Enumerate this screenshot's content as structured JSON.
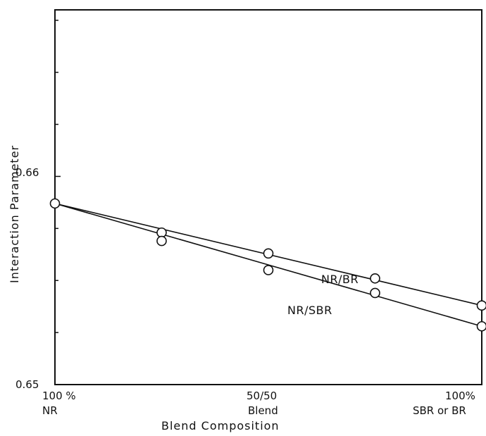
{
  "chart_data": {
    "type": "line",
    "title": "",
    "xlabel": "Blend Composition",
    "ylabel": "Interaction Parameter",
    "x": [
      0,
      25,
      50,
      75,
      100
    ],
    "xlim": [
      0,
      100
    ],
    "ylim": [
      0.65,
      0.668
    ],
    "yticks": [
      {
        "value": 0.65,
        "label": "0.65"
      },
      {
        "value": 0.66,
        "label": "0.66"
      }
    ],
    "xticks": [
      {
        "value": 0,
        "lines": [
          "100 %",
          "NR"
        ]
      },
      {
        "value": 50,
        "lines": [
          "50/50",
          "Blend"
        ]
      },
      {
        "value": 100,
        "lines": [
          "100%",
          "SBR or BR"
        ]
      }
    ],
    "series": [
      {
        "name": "NR/BR",
        "values": [
          0.6587,
          0.6573,
          0.6563,
          0.6551,
          0.6538
        ]
      },
      {
        "name": "NR/SBR",
        "values": [
          0.6587,
          0.6569,
          0.6555,
          0.6544,
          0.6528
        ]
      }
    ],
    "grid": false,
    "legend": "inline labels near lines"
  }
}
